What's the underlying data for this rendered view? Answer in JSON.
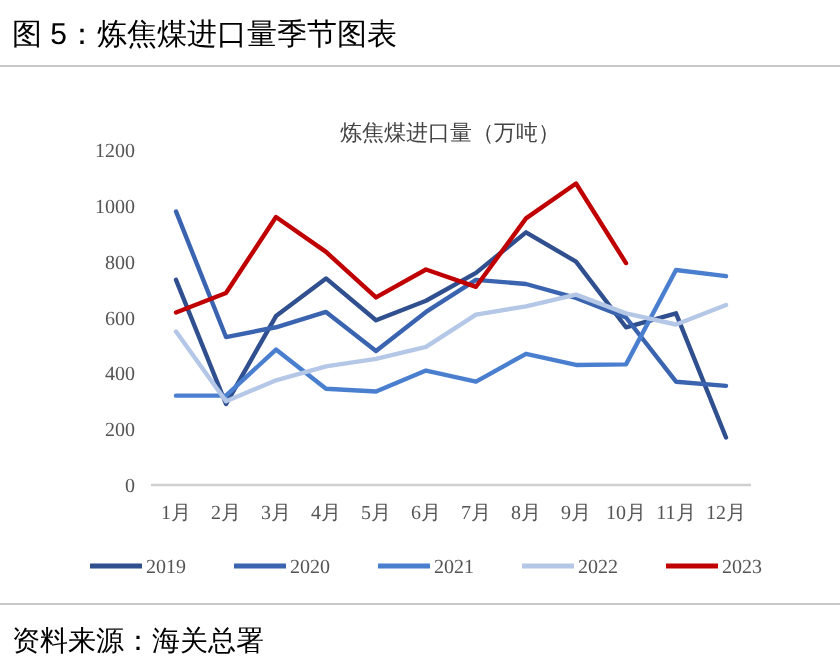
{
  "chart_data": {
    "type": "line",
    "title": "图 5：炼焦煤进口量季节图表",
    "subtitle": "炼焦煤进口量（万吨）",
    "annotations": [
      "资料来源：海关总署"
    ],
    "categories": [
      "1月",
      "2月",
      "3月",
      "4月",
      "5月",
      "6月",
      "7月",
      "8月",
      "9月",
      "10月",
      "11月",
      "12月"
    ],
    "ylim": [
      0,
      1200
    ],
    "yticks": [
      0,
      200,
      400,
      600,
      800,
      1000,
      1200
    ],
    "legend": "bottom",
    "series": [
      {
        "name": "2019",
        "color": "#2f4f8f",
        "values": [
          735,
          290,
          605,
          740,
          590,
          660,
          760,
          905,
          800,
          565,
          615,
          170
        ]
      },
      {
        "name": "2020",
        "color": "#3a64b0",
        "values": [
          980,
          530,
          565,
          620,
          480,
          620,
          735,
          720,
          670,
          600,
          370,
          355
        ]
      },
      {
        "name": "2021",
        "color": "#4a7fd0",
        "values": [
          320,
          320,
          485,
          345,
          335,
          410,
          370,
          470,
          430,
          432,
          770,
          748
        ]
      },
      {
        "name": "2022",
        "color": "#b4c7e7",
        "values": [
          550,
          300,
          375,
          425,
          452,
          495,
          610,
          640,
          682,
          615,
          575,
          645
        ]
      },
      {
        "name": "2023",
        "color": "#c00000",
        "values": [
          618,
          688,
          960,
          835,
          672,
          772,
          710,
          955,
          1080,
          795,
          null,
          null
        ]
      }
    ]
  }
}
